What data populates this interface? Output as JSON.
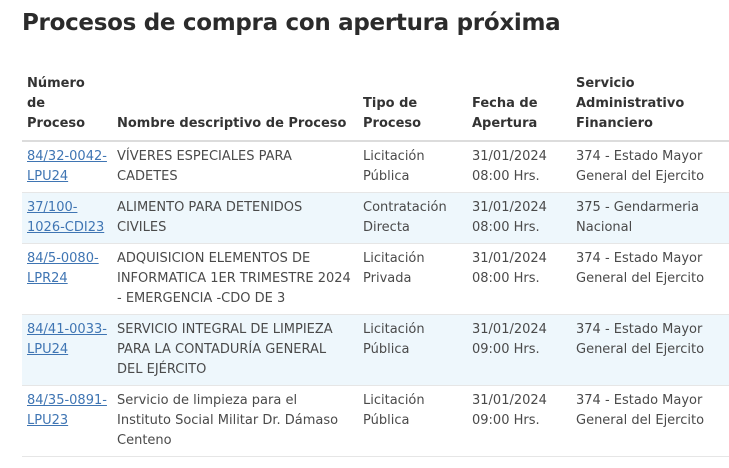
{
  "page_title": "Procesos de compra con apertura próxima",
  "table": {
    "headers": {
      "numero": "Número de Proceso",
      "nombre": "Nombre descriptivo de Proceso",
      "tipo": "Tipo de Proceso",
      "fecha": "Fecha de Apertura",
      "servicio": "Servicio Administrativo Financiero"
    },
    "rows": [
      {
        "numero": "84/32-0042-LPU24",
        "nombre": "VÍVERES ESPECIALES PARA CADETES",
        "tipo": "Licitación Pública",
        "fecha": "31/01/2024 08:00 Hrs.",
        "servicio": "374 - Estado Mayor General del Ejercito"
      },
      {
        "numero": "37/100-1026-CDI23",
        "nombre": "ALIMENTO PARA DETENIDOS CIVILES",
        "tipo": "Contratación Directa",
        "fecha": "31/01/2024 08:00 Hrs.",
        "servicio": "375 - Gendarmeria Nacional"
      },
      {
        "numero": "84/5-0080-LPR24",
        "nombre": "ADQUISICION ELEMENTOS DE INFORMATICA 1ER TRIMESTRE 2024 - EMERGENCIA -CDO DE 3",
        "tipo": "Licitación Privada",
        "fecha": "31/01/2024 08:00 Hrs.",
        "servicio": "374 - Estado Mayor General del Ejercito"
      },
      {
        "numero": "84/41-0033-LPU24",
        "nombre": "SERVICIO INTEGRAL DE LIMPIEZA PARA LA CONTADURÍA GENERAL DEL EJÉRCITO",
        "tipo": "Licitación Pública",
        "fecha": "31/01/2024 09:00 Hrs.",
        "servicio": "374 - Estado Mayor General del Ejercito"
      },
      {
        "numero": "84/35-0891-LPU23",
        "nombre": "Servicio de limpieza para el Instituto Social Militar Dr. Dámaso Centeno",
        "tipo": "Licitación Pública",
        "fecha": "31/01/2024 09:00 Hrs.",
        "servicio": "374 - Estado Mayor General del Ejercito"
      }
    ]
  }
}
